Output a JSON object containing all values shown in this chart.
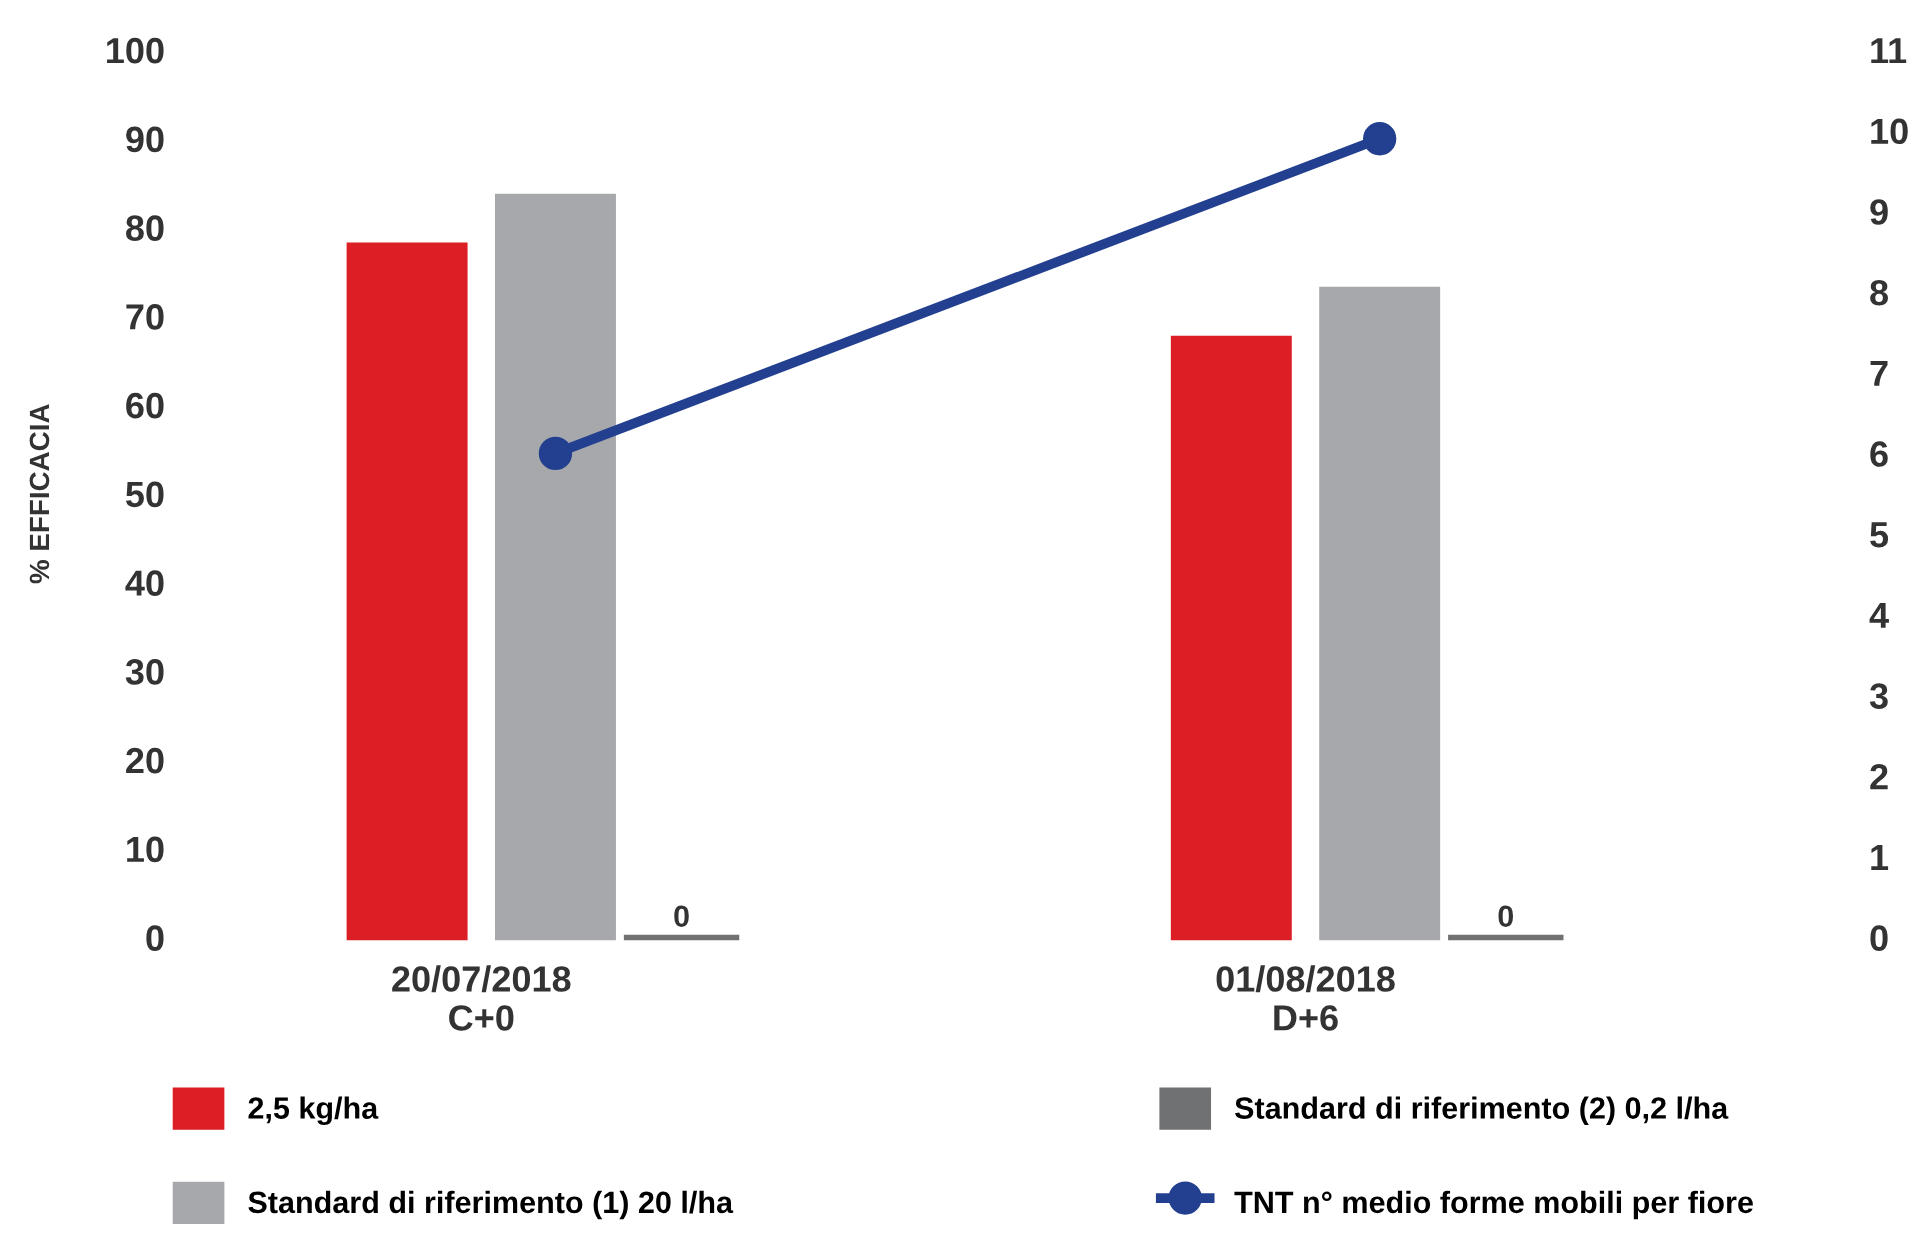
{
  "chart_data": {
    "type": "bar",
    "ylabel": "% EFFICACIA",
    "categories": [
      "20/07/2018\nC+0",
      "01/08/2018\nD+6"
    ],
    "series": [
      {
        "name": "2,5 kg/ha",
        "color": "#dc1e25",
        "values": [
          78,
          67.5
        ]
      },
      {
        "name": "Standard di riferimento (1) 20 l/ha",
        "color": "#a7a8ac",
        "values": [
          83.5,
          73
        ]
      },
      {
        "name": "Standard di riferimento (2) 0,2 l/ha",
        "color": "#707173",
        "values": [
          0,
          0
        ],
        "value_labels": [
          "0",
          "0"
        ]
      },
      {
        "name": "TNT n° medio forme mobili per fiore",
        "type": "line",
        "axis": "y2",
        "color": "#233f8f",
        "values": [
          6,
          9.9
        ]
      }
    ],
    "ylim": [
      0,
      100
    ],
    "yticks": [
      0,
      10,
      20,
      30,
      40,
      50,
      60,
      70,
      80,
      90,
      100
    ],
    "y2lim": [
      0,
      11
    ],
    "y2ticks": [
      0,
      1,
      2,
      3,
      4,
      5,
      6,
      7,
      8,
      9,
      10,
      11
    ],
    "marker": "circle",
    "line_style": "solid",
    "grid": false,
    "legend": "bottom"
  }
}
